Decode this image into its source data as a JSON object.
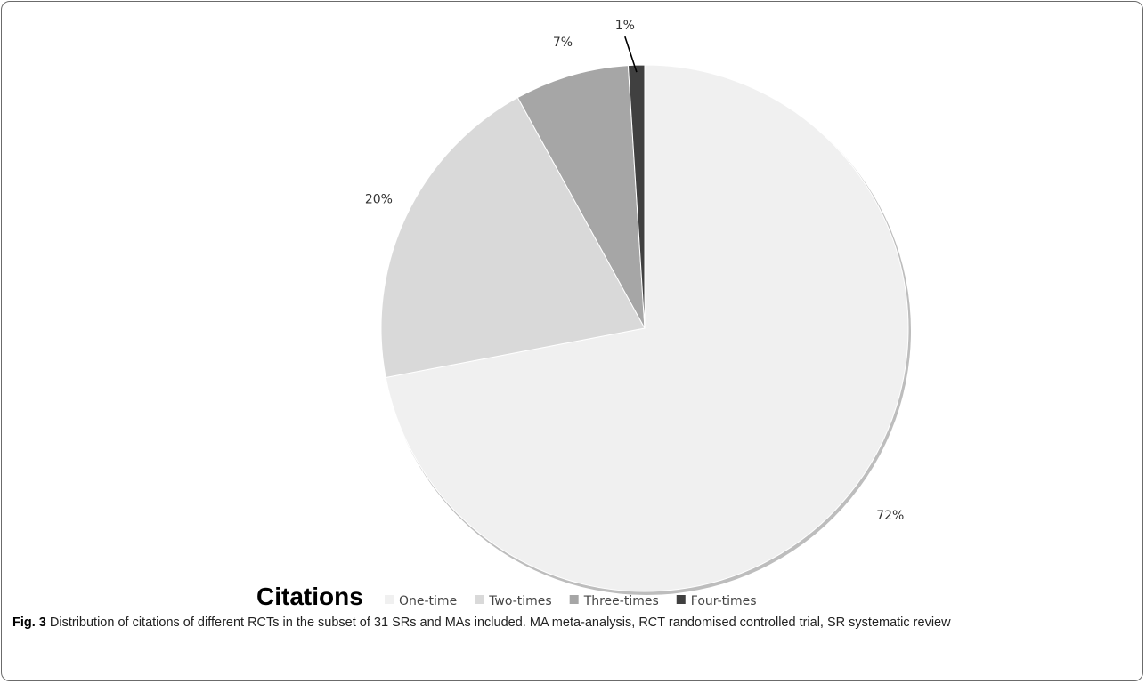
{
  "chart_data": {
    "type": "pie",
    "categories": [
      "One-time",
      "Two-times",
      "Three-times",
      "Four-times"
    ],
    "values": [
      72,
      20,
      7,
      1
    ],
    "data_labels": [
      "72%",
      "20%",
      "7%",
      "1%"
    ],
    "legend_title": "Citations",
    "legend_position": "bottom",
    "colors": [
      "#f0f0f0",
      "#d9d9d9",
      "#a6a6a6",
      "#404040"
    ]
  },
  "caption": {
    "label": "Fig. 3",
    "text": "Distribution of citations of different RCTs in the subset of 31 SRs and MAs included. MA meta-analysis, RCT randomised controlled trial, SR systematic review"
  }
}
